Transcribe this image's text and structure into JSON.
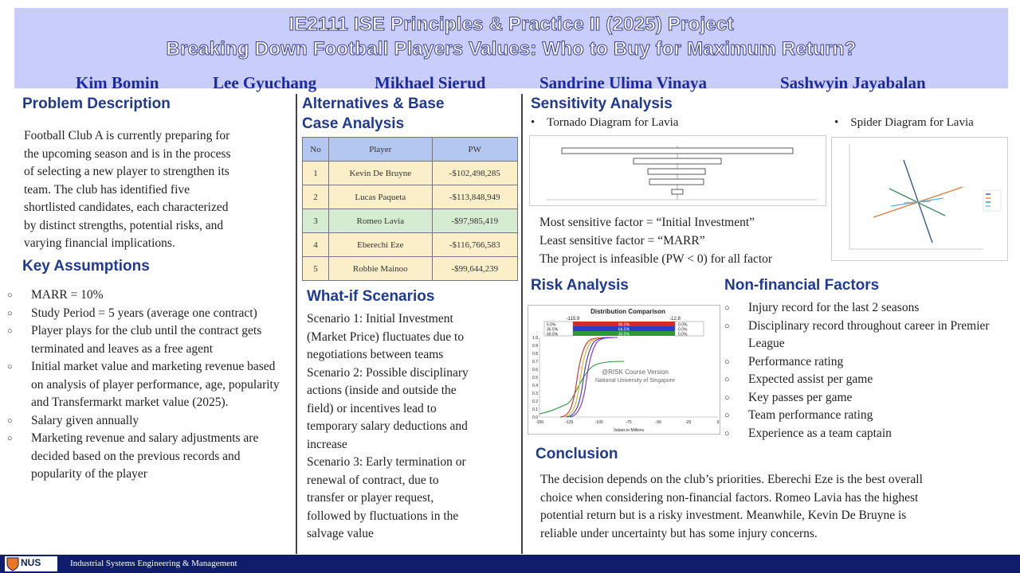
{
  "header": {
    "title_line1": "IE2111 ISE Principles & Practice II (2025) Project",
    "title_line2": "Breaking Down Football Players Values: Who to Buy for Maximum Return?",
    "authors": [
      "Kim Bomin",
      "Lee Gyuchang",
      "Mikhael Sierud",
      "Sandrine Ulima Vinaya",
      "Sashwyin Jayabalan"
    ]
  },
  "problem": {
    "heading": "Problem Description",
    "lines": [
      "Football Club A is currently preparing for",
      "the upcoming season and is in the process",
      "of selecting a new player to strengthen its",
      "team. The club has identified five",
      "shortlisted candidates, each characterized",
      "by distinct strengths, potential risks, and",
      "varying financial implications."
    ]
  },
  "assumptions": {
    "heading": "Key Assumptions",
    "items": [
      "MARR = 10%",
      "Study Period = 5 years (average one contract)",
      "Player plays for the club until the contract gets terminated and leaves as a free agent",
      "Initial market value and marketing revenue based on analysis of player performance, age, popularity and Transfermarkt market value (2025).",
      "Salary given annually",
      "Marketing revenue and salary adjustments are decided based on the previous records and popularity of the player"
    ]
  },
  "alternatives": {
    "heading_line1": "Alternatives & Base",
    "heading_line2": "Case Analysis",
    "columns": [
      "No",
      "Player",
      "PW"
    ],
    "rows": [
      {
        "no": "1",
        "player": "Kevin De Bruyne",
        "pw": "-$102,498,285"
      },
      {
        "no": "2",
        "player": "Lucas Paqueta",
        "pw": "-$113,848,949"
      },
      {
        "no": "3",
        "player": "Romeo Lavia",
        "pw": "-$97,985,419"
      },
      {
        "no": "4",
        "player": "Eberechi Eze",
        "pw": "-$116,766,583"
      },
      {
        "no": "5",
        "player": "Robbie Mainoo",
        "pw": "-$99,644,239"
      }
    ]
  },
  "whatif": {
    "heading": "What-if Scenarios",
    "lines": [
      "Scenario 1: Initial Investment",
      "(Market Price) fluctuates due to",
      "negotiations between teams",
      "Scenario 2: Possible disciplinary",
      "actions (inside and outside the",
      "field) or incentives lead to",
      "temporary salary deductions and",
      "increase",
      "Scenario 3: Early termination or",
      "renewal of contract, due to",
      "transfer or player request,",
      "followed by fluctuations in the",
      "salvage value"
    ]
  },
  "sensitivity": {
    "heading": "Sensitivity Analysis",
    "tornado_caption": "Tornado Diagram for Lavia",
    "spider_caption": "Spider Diagram for Lavia",
    "findings": [
      "Most sensitive factor = “Initial Investment”",
      "Least sensitive factor = “MARR”",
      "The project is infeasible (PW < 0) for all factor"
    ]
  },
  "risk": {
    "heading": "Risk Analysis",
    "chart_title": "Distribution Comparison",
    "left_marker": "-115.9",
    "right_marker": "-12.8",
    "left_pcts": [
      "5.0%",
      "35.5%",
      "69.5%"
    ],
    "mid_pcts": [
      "95.0%",
      "64.5%",
      "30.5%"
    ],
    "right_pcts": [
      "0.0%",
      "0.0%",
      "0.0%"
    ],
    "watermark_line1": "@RISK Course Version",
    "watermark_line2": "National University of Singapore",
    "x_axis_label": "Values in Millions",
    "y_ticks": [
      "1.0",
      "0.9",
      "0.8",
      "0.7",
      "0.6",
      "0.5",
      "0.4",
      "0.3",
      "0.2",
      "0.1",
      "0.0"
    ],
    "x_ticks": [
      "-150",
      "-125",
      "-100",
      "-75",
      "-50",
      "-25",
      "0"
    ]
  },
  "nonfinancial": {
    "heading": "Non-financial Factors",
    "items": [
      "Injury record for the last 2 seasons",
      "Disciplinary record throughout career in Premier League",
      "Performance rating",
      "Expected assist per game",
      "Key passes per game",
      "Team performance rating",
      "Experience as a team captain"
    ]
  },
  "conclusion": {
    "heading": "Conclusion",
    "lines": [
      "The decision depends on the club’s priorities. Eberechi Eze is the best overall",
      "choice when considering non-financial factors. Romeo Lavia has the highest",
      "potential return but is a risky investment. Meanwhile, Kevin De Bruyne is",
      "reliable under uncertainty but has some injury concerns."
    ]
  },
  "footer": {
    "logo_text": "NUS",
    "text": "Industrial Systems Engineering & Management"
  },
  "colors": {
    "banner": "#c9cdfb",
    "heading": "#1f3a93",
    "author": "#1c2a9e",
    "footer": "#0f1d6b"
  }
}
